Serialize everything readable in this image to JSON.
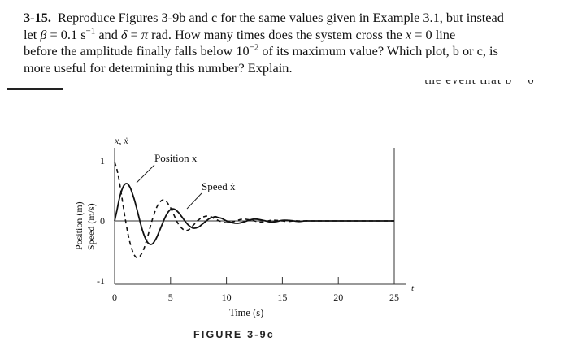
{
  "problem": {
    "number": "3-15.",
    "line1": "Reproduce Figures 3-9b and c for the same values given in Example 3.1, but instead",
    "line2_a": "let ",
    "line2_beta": "β",
    "line2_b": " = 0.1 s",
    "line2_exp": "−1",
    "line2_c": " and ",
    "line2_delta": "δ",
    "line2_d": " = ",
    "line2_pi": "π",
    "line2_e": " rad. How many times does the system cross the ",
    "line2_x": "x",
    "line2_f": " = 0 line",
    "line3_a": "before the amplitude finally falls below 10",
    "line3_exp": "−2",
    "line3_b": " of its maximum value? Which plot, b or c, is",
    "line4": "more useful for determining this number? Explain."
  },
  "cutoff_text": "− the event that b − 0",
  "figure": {
    "caption": "FIGURE 3-9c",
    "y_axis_label_top": "x, ẋ",
    "y_axis_title_1": "Position (m)",
    "y_axis_title_2": "Speed (m/s)",
    "t_label": "t",
    "xlabel": "Time (s)",
    "annotation_position": "Position x",
    "annotation_speed": "Speed ẋ"
  },
  "chart_data": {
    "type": "line",
    "title": "",
    "xlabel": "Time (s)",
    "ylabel": "Position (m) / Speed (m/s)",
    "xlim": [
      0,
      25
    ],
    "ylim": [
      -1,
      1
    ],
    "x_ticks": [
      0,
      5,
      10,
      15,
      20,
      25
    ],
    "y_ticks": [
      -1,
      0,
      1
    ],
    "x_tick_labels": [
      "0",
      "5",
      "10",
      "15",
      "20",
      "25"
    ],
    "y_tick_labels": [
      "-1",
      "0",
      "1"
    ],
    "series": [
      {
        "name": "Position x",
        "style": "solid",
        "x": [
          0,
          0.2,
          0.4,
          0.6,
          0.8,
          1.0,
          1.2,
          1.4,
          1.6,
          1.8,
          2.0,
          2.2,
          2.4,
          2.6,
          2.8,
          3.0,
          3.2,
          3.4,
          3.6,
          3.8,
          4.0,
          4.2,
          4.4,
          4.6,
          4.8,
          5.0,
          5.2,
          5.4,
          5.6,
          5.8,
          6.0,
          6.2,
          6.4,
          6.6,
          6.8,
          7.0,
          7.2,
          7.4,
          7.6,
          7.8,
          8.0,
          8.2,
          8.4,
          8.6,
          8.8,
          9.0,
          9.2,
          9.4,
          9.6,
          9.8,
          10.0,
          10.5,
          11.0,
          11.5,
          12.0,
          12.5,
          13.0,
          13.5,
          14.0,
          14.5,
          15.0,
          15.5,
          16.0,
          16.5,
          17.0,
          17.5,
          18.0,
          19.0,
          20.0,
          22.0,
          25.0
        ],
        "y": [
          0,
          0.17,
          0.35,
          0.49,
          0.58,
          0.62,
          0.61,
          0.55,
          0.45,
          0.33,
          0.19,
          0.04,
          -0.1,
          -0.22,
          -0.31,
          -0.37,
          -0.39,
          -0.38,
          -0.33,
          -0.26,
          -0.17,
          -0.08,
          0.01,
          0.09,
          0.15,
          0.19,
          0.2,
          0.19,
          0.16,
          0.12,
          0.07,
          0.02,
          -0.03,
          -0.07,
          -0.1,
          -0.12,
          -0.12,
          -0.11,
          -0.09,
          -0.06,
          -0.03,
          0.0,
          0.03,
          0.05,
          0.06,
          0.07,
          0.06,
          0.05,
          0.04,
          0.02,
          0.0,
          -0.03,
          -0.04,
          -0.02,
          0.01,
          0.03,
          0.02,
          0.0,
          -0.02,
          -0.01,
          0.01,
          0.01,
          0.0,
          -0.01,
          0.0,
          0.0,
          0.0,
          0.0,
          0.0,
          0.0,
          0.0
        ]
      },
      {
        "name": "Speed ẋ",
        "style": "dashed",
        "x": [
          0,
          0.2,
          0.4,
          0.6,
          0.8,
          1.0,
          1.2,
          1.4,
          1.6,
          1.8,
          2.0,
          2.2,
          2.4,
          2.6,
          2.8,
          3.0,
          3.2,
          3.4,
          3.6,
          3.8,
          4.0,
          4.2,
          4.4,
          4.6,
          4.8,
          5.0,
          5.2,
          5.4,
          5.6,
          5.8,
          6.0,
          6.2,
          6.4,
          6.6,
          6.8,
          7.0,
          7.2,
          7.4,
          7.6,
          7.8,
          8.0,
          8.2,
          8.4,
          8.6,
          8.8,
          9.0,
          9.5,
          10.0,
          10.5,
          11.0,
          11.5,
          12.0,
          12.5,
          13.0,
          13.5,
          14.0,
          14.5,
          15.0,
          15.5,
          16.0,
          16.5,
          17.0,
          18.0,
          19.0,
          20.0,
          22.0,
          25.0
        ],
        "y": [
          0.98,
          0.86,
          0.68,
          0.45,
          0.21,
          -0.02,
          -0.22,
          -0.38,
          -0.5,
          -0.58,
          -0.61,
          -0.6,
          -0.55,
          -0.47,
          -0.36,
          -0.23,
          -0.09,
          0.04,
          0.15,
          0.24,
          0.3,
          0.34,
          0.35,
          0.33,
          0.28,
          0.22,
          0.14,
          0.06,
          -0.02,
          -0.08,
          -0.12,
          -0.15,
          -0.16,
          -0.15,
          -0.12,
          -0.08,
          -0.04,
          0.0,
          0.03,
          0.06,
          0.07,
          0.08,
          0.08,
          0.07,
          0.05,
          0.03,
          -0.01,
          -0.03,
          -0.02,
          0.01,
          0.03,
          0.02,
          0.0,
          -0.02,
          -0.01,
          0.01,
          0.01,
          0.0,
          -0.01,
          0.0,
          0.0,
          0.0,
          0.0,
          0.0,
          0.0,
          0.0,
          0.0
        ]
      }
    ],
    "annotations": [
      "Position x",
      "Speed ẋ"
    ],
    "grid": false,
    "legend": "none"
  },
  "colors": {
    "ink": "#111111",
    "axis": "#333333",
    "background": "#ffffff"
  }
}
